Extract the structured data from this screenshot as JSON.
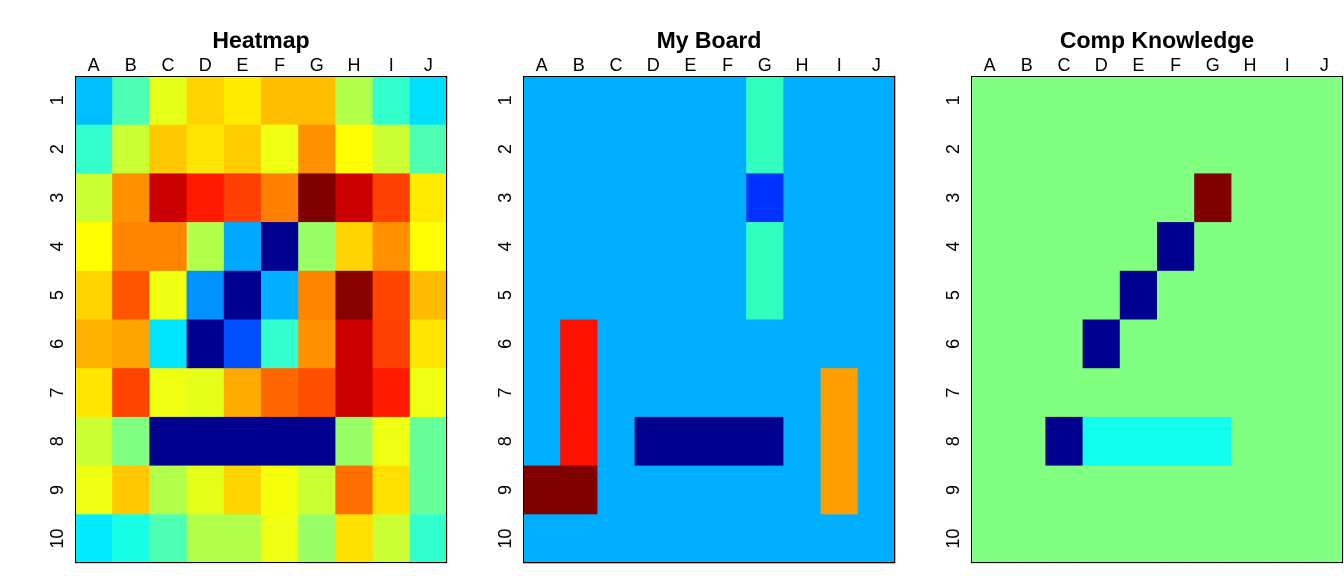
{
  "chart_data": [
    {
      "type": "heatmap",
      "title": "Heatmap",
      "columns": [
        "A",
        "B",
        "C",
        "D",
        "E",
        "F",
        "G",
        "H",
        "I",
        "J"
      ],
      "rows": [
        "1",
        "2",
        "3",
        "4",
        "5",
        "6",
        "7",
        "8",
        "9",
        "10"
      ],
      "cells": [
        [
          "#00bfff",
          "#4cffb2",
          "#e6ff19",
          "#ffd400",
          "#ffea00",
          "#ffbf00",
          "#ffbf00",
          "#b2ff4c",
          "#33ffcc",
          "#00dfff"
        ],
        [
          "#33ffcc",
          "#ccff33",
          "#ffc800",
          "#ffe600",
          "#ffcc00",
          "#eeff11",
          "#ff9000",
          "#ffff00",
          "#ccff33",
          "#4cffb2"
        ],
        [
          "#ccff33",
          "#ff9000",
          "#cc0000",
          "#ff1a00",
          "#ff4000",
          "#ff7f00",
          "#800000",
          "#cc0000",
          "#ff4000",
          "#ffea00"
        ],
        [
          "#ffff00",
          "#ff8500",
          "#ff8500",
          "#b2ff4c",
          "#00a8ff",
          "#00008f",
          "#99ff66",
          "#ffd400",
          "#ff9000",
          "#ffff00"
        ],
        [
          "#ffd400",
          "#ff5500",
          "#eeff11",
          "#0090ff",
          "#00008f",
          "#00b0ff",
          "#ff8500",
          "#880000",
          "#ff4400",
          "#ffbb00"
        ],
        [
          "#ffb000",
          "#ffa500",
          "#00e6ff",
          "#00008f",
          "#0050ff",
          "#33ffcc",
          "#ff9000",
          "#cc0000",
          "#ff4000",
          "#ffe600"
        ],
        [
          "#ffe600",
          "#ff4400",
          "#eeff11",
          "#e6ff19",
          "#ffaa00",
          "#ff6600",
          "#ff5000",
          "#cc0000",
          "#ff1a00",
          "#eeff11"
        ],
        [
          "#ccff33",
          "#80ff80",
          "#00008f",
          "#00008f",
          "#00008f",
          "#00008f",
          "#00008f",
          "#99ff66",
          "#eeff11",
          "#66ff99"
        ],
        [
          "#eeff11",
          "#ffc800",
          "#b2ff4c",
          "#e6ff19",
          "#ffd400",
          "#f5ff0a",
          "#ccff33",
          "#ff7000",
          "#ffe000",
          "#66ff99"
        ],
        [
          "#00ecff",
          "#19ffe6",
          "#4cffb2",
          "#b2ff4c",
          "#b2ff4c",
          "#eeff11",
          "#99ff66",
          "#ffe000",
          "#ccff33",
          "#33ffcc"
        ]
      ]
    },
    {
      "type": "heatmap",
      "title": "My Board",
      "columns": [
        "A",
        "B",
        "C",
        "D",
        "E",
        "F",
        "G",
        "H",
        "I",
        "J"
      ],
      "rows": [
        "1",
        "2",
        "3",
        "4",
        "5",
        "6",
        "7",
        "8",
        "9",
        "10"
      ],
      "background": "#00aeff",
      "cells_override": [
        {
          "col": 6,
          "row": 0,
          "color": "#33ffbf"
        },
        {
          "col": 6,
          "row": 1,
          "color": "#33ffbf"
        },
        {
          "col": 6,
          "row": 2,
          "color": "#0033ff"
        },
        {
          "col": 6,
          "row": 3,
          "color": "#33ffbf"
        },
        {
          "col": 6,
          "row": 4,
          "color": "#33ffbf"
        },
        {
          "col": 1,
          "row": 5,
          "color": "#ff1100"
        },
        {
          "col": 1,
          "row": 6,
          "color": "#ff1100"
        },
        {
          "col": 1,
          "row": 7,
          "color": "#ff1100"
        },
        {
          "col": 0,
          "row": 8,
          "color": "#800000"
        },
        {
          "col": 1,
          "row": 8,
          "color": "#800000"
        },
        {
          "col": 3,
          "row": 7,
          "color": "#00008f"
        },
        {
          "col": 4,
          "row": 7,
          "color": "#00008f"
        },
        {
          "col": 5,
          "row": 7,
          "color": "#00008f"
        },
        {
          "col": 6,
          "row": 7,
          "color": "#00008f"
        },
        {
          "col": 8,
          "row": 6,
          "color": "#ff9f00"
        },
        {
          "col": 8,
          "row": 7,
          "color": "#ff9f00"
        },
        {
          "col": 8,
          "row": 8,
          "color": "#ff9f00"
        }
      ]
    },
    {
      "type": "heatmap",
      "title": "Comp Knowledge",
      "columns": [
        "A",
        "B",
        "C",
        "D",
        "E",
        "F",
        "G",
        "H",
        "I",
        "J"
      ],
      "rows": [
        "1",
        "2",
        "3",
        "4",
        "5",
        "6",
        "7",
        "8",
        "9",
        "10"
      ],
      "background": "#80ff80",
      "cells_override": [
        {
          "col": 6,
          "row": 2,
          "color": "#800000"
        },
        {
          "col": 5,
          "row": 3,
          "color": "#00008f"
        },
        {
          "col": 4,
          "row": 4,
          "color": "#00008f"
        },
        {
          "col": 3,
          "row": 5,
          "color": "#00008f"
        },
        {
          "col": 2,
          "row": 7,
          "color": "#00008f"
        },
        {
          "col": 3,
          "row": 7,
          "color": "#11ffee"
        },
        {
          "col": 4,
          "row": 7,
          "color": "#11ffee"
        },
        {
          "col": 5,
          "row": 7,
          "color": "#11ffee"
        },
        {
          "col": 6,
          "row": 7,
          "color": "#11ffee"
        }
      ]
    }
  ]
}
